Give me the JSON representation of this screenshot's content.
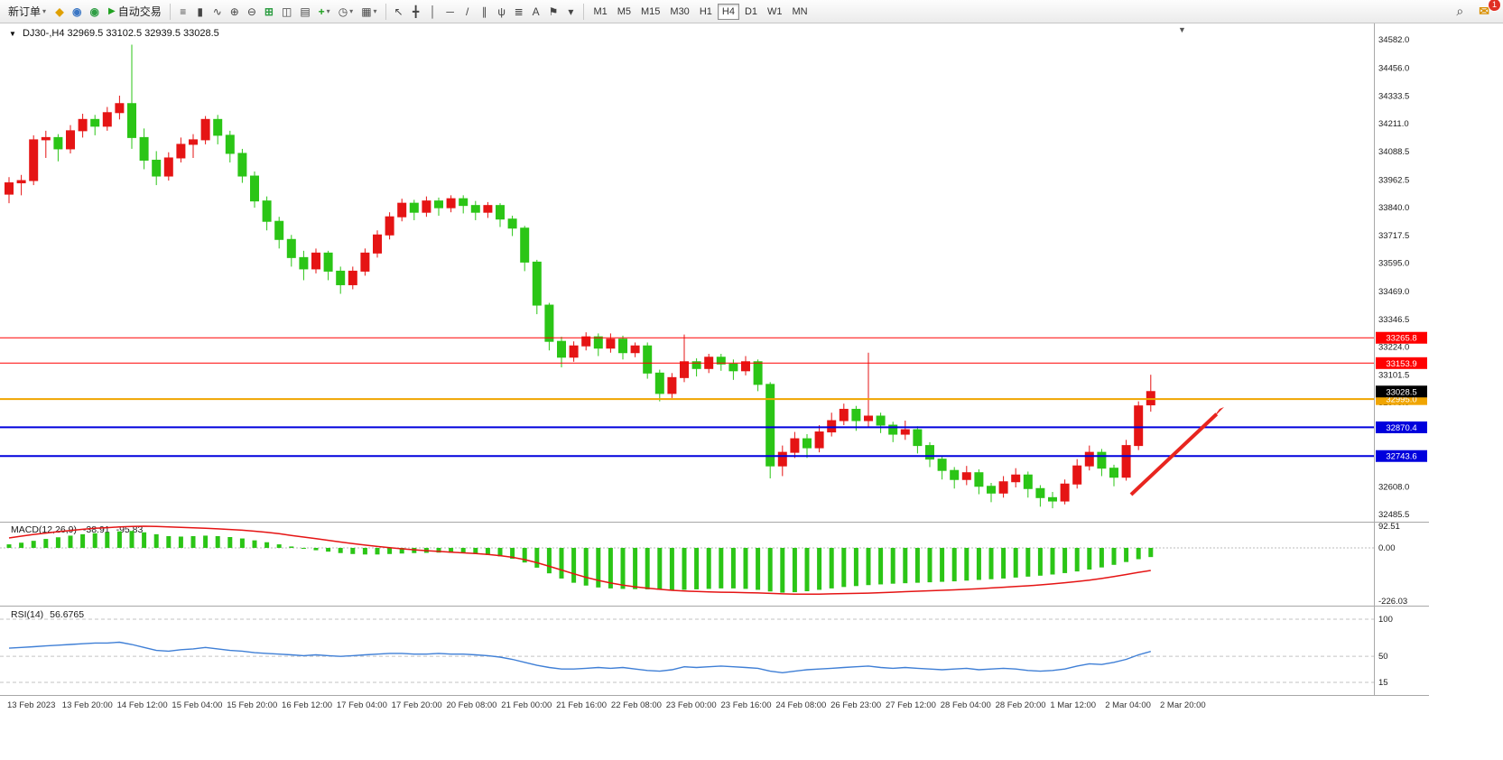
{
  "toolbar": {
    "new_order_label": "新订单",
    "auto_trading_label": "自动交易",
    "left_icons": [
      {
        "name": "market-icon",
        "glyph": "◆",
        "color": "#dfa000"
      },
      {
        "name": "community-icon",
        "glyph": "◉",
        "color": "#3a76c4"
      },
      {
        "name": "help-icon",
        "glyph": "◉",
        "color": "#2f9e44"
      }
    ],
    "chart_tools": [
      {
        "name": "bars-chart-icon",
        "glyph": "≡"
      },
      {
        "name": "candlestick-chart-icon",
        "glyph": "▮"
      },
      {
        "name": "line-chart-icon",
        "glyph": "∿"
      },
      {
        "name": "zoom-in-icon",
        "glyph": "⊕"
      },
      {
        "name": "zoom-out-icon",
        "glyph": "⊖"
      },
      {
        "name": "tile-windows-icon",
        "glyph": "⊞",
        "color": "#2f9e44"
      },
      {
        "name": "navigator-icon",
        "glyph": "◫"
      },
      {
        "name": "data-window-icon",
        "glyph": "▤"
      },
      {
        "name": "add-indicator-icon",
        "glyph": "+",
        "color": "#1fa11f",
        "caret": true
      },
      {
        "name": "period-clock-icon",
        "glyph": "◷",
        "caret": true
      },
      {
        "name": "template-icon",
        "glyph": "▦",
        "caret": true
      }
    ],
    "draw_tools": [
      {
        "name": "cursor-icon",
        "glyph": "↖"
      },
      {
        "name": "crosshair-icon",
        "glyph": "╋"
      },
      {
        "name": "vertical-line-icon",
        "glyph": "│"
      },
      {
        "name": "horizontal-line-icon",
        "glyph": "─"
      },
      {
        "name": "trendline-icon",
        "glyph": "/"
      },
      {
        "name": "channel-icon",
        "glyph": "∥"
      },
      {
        "name": "pitchfork-icon",
        "glyph": "ψ"
      },
      {
        "name": "fibonacci-icon",
        "glyph": "≣"
      },
      {
        "name": "text-icon",
        "glyph": "A"
      },
      {
        "name": "label-icon",
        "glyph": "⚑"
      },
      {
        "name": "shapes-icon",
        "glyph": "▾"
      }
    ],
    "timeframes": [
      "M1",
      "M5",
      "M15",
      "M30",
      "H1",
      "H4",
      "D1",
      "W1",
      "MN"
    ],
    "active_timeframe": "H4",
    "right_icons": [
      {
        "name": "search-icon",
        "glyph": "⌕"
      },
      {
        "name": "chat-icon",
        "glyph": "✉",
        "color": "#d98f00"
      }
    ],
    "notification_badge": "1"
  },
  "chart_data": {
    "type": "candlestick",
    "title": {
      "collapse_marker": "▼",
      "symbol": "DJ30-,H4",
      "open": "32969.5",
      "high": "33102.5",
      "low": "32939.5",
      "close": "33028.5"
    },
    "bull_color": "#e51414",
    "bear_color": "#2bc516",
    "price_axis_labels": [
      "34582.0",
      "34456.0",
      "34333.5",
      "34211.0",
      "34088.5",
      "33962.5",
      "33840.0",
      "33717.5",
      "33595.0",
      "33469.0",
      "33346.5",
      "33224.0",
      "33101.5",
      "32979.0",
      "32856.5",
      "32731.0",
      "32608.0",
      "32485.5"
    ],
    "price_axis_range": {
      "top_value": 34582.0,
      "bottom_value": 32485.5
    },
    "current_price": 33028.5,
    "current_price_label": "33028.5",
    "hlines": [
      {
        "value": 33265.8,
        "label": "33265.8",
        "color": "#ff0000",
        "width": 1
      },
      {
        "value": 33153.9,
        "label": "33153.9",
        "color": "#ff0000",
        "width": 1
      },
      {
        "value": 32995.0,
        "label": "32995.0",
        "color": "#f0a500",
        "width": 2
      },
      {
        "value": 32870.4,
        "label": "32870.4",
        "color": "#0000dd",
        "width": 2
      },
      {
        "value": 32743.6,
        "label": "32743.6",
        "color": "#0000dd",
        "width": 2
      }
    ],
    "time_labels": [
      "13 Feb 2023",
      "13 Feb 20:00",
      "14 Feb 12:00",
      "15 Feb 04:00",
      "15 Feb 20:00",
      "16 Feb 12:00",
      "17 Feb 04:00",
      "17 Feb 20:00",
      "20 Feb 08:00",
      "21 Feb 00:00",
      "21 Feb 16:00",
      "22 Feb 08:00",
      "23 Feb 00:00",
      "23 Feb 16:00",
      "24 Feb 08:00",
      "26 Feb 23:00",
      "27 Feb 12:00",
      "28 Feb 04:00",
      "28 Feb 20:00",
      "1 Mar 12:00",
      "2 Mar 04:00",
      "2 Mar 20:00"
    ],
    "candles": [
      [
        33900,
        33975,
        33860,
        33950
      ],
      [
        33950,
        33985,
        33895,
        33960
      ],
      [
        33960,
        34160,
        33940,
        34140
      ],
      [
        34140,
        34180,
        34060,
        34150
      ],
      [
        34150,
        34165,
        34045,
        34100
      ],
      [
        34100,
        34205,
        34080,
        34180
      ],
      [
        34180,
        34255,
        34150,
        34230
      ],
      [
        34230,
        34250,
        34160,
        34200
      ],
      [
        34200,
        34285,
        34180,
        34260
      ],
      [
        34260,
        34335,
        34230,
        34300
      ],
      [
        34300,
        34560,
        34100,
        34150
      ],
      [
        34150,
        34190,
        34010,
        34050
      ],
      [
        34050,
        34090,
        33940,
        33980
      ],
      [
        33980,
        34085,
        33960,
        34060
      ],
      [
        34060,
        34150,
        34040,
        34120
      ],
      [
        34120,
        34165,
        34060,
        34140
      ],
      [
        34140,
        34245,
        34120,
        34230
      ],
      [
        34230,
        34250,
        34120,
        34160
      ],
      [
        34160,
        34180,
        34040,
        34080
      ],
      [
        34080,
        34100,
        33950,
        33980
      ],
      [
        33980,
        34000,
        33840,
        33870
      ],
      [
        33870,
        33890,
        33740,
        33780
      ],
      [
        33780,
        33800,
        33660,
        33700
      ],
      [
        33700,
        33720,
        33580,
        33620
      ],
      [
        33620,
        33650,
        33520,
        33570
      ],
      [
        33570,
        33660,
        33550,
        33640
      ],
      [
        33640,
        33650,
        33520,
        33560
      ],
      [
        33560,
        33580,
        33460,
        33500
      ],
      [
        33500,
        33580,
        33480,
        33560
      ],
      [
        33560,
        33660,
        33540,
        33640
      ],
      [
        33640,
        33740,
        33620,
        33720
      ],
      [
        33720,
        33820,
        33700,
        33800
      ],
      [
        33800,
        33880,
        33780,
        33860
      ],
      [
        33860,
        33875,
        33785,
        33820
      ],
      [
        33820,
        33890,
        33800,
        33870
      ],
      [
        33870,
        33885,
        33805,
        33840
      ],
      [
        33840,
        33895,
        33820,
        33880
      ],
      [
        33880,
        33895,
        33815,
        33850
      ],
      [
        33850,
        33870,
        33785,
        33820
      ],
      [
        33820,
        33865,
        33795,
        33850
      ],
      [
        33850,
        33860,
        33755,
        33790
      ],
      [
        33790,
        33805,
        33715,
        33750
      ],
      [
        33750,
        33760,
        33560,
        33600
      ],
      [
        33600,
        33610,
        33370,
        33410
      ],
      [
        33410,
        33420,
        33210,
        33250
      ],
      [
        33250,
        33270,
        33135,
        33180
      ],
      [
        33180,
        33250,
        33160,
        33230
      ],
      [
        33230,
        33290,
        33210,
        33270
      ],
      [
        33270,
        33285,
        33185,
        33220
      ],
      [
        33220,
        33285,
        33200,
        33260
      ],
      [
        33260,
        33275,
        33170,
        33200
      ],
      [
        33200,
        33245,
        33180,
        33230
      ],
      [
        33230,
        33245,
        33085,
        33110
      ],
      [
        33110,
        33125,
        32985,
        33020
      ],
      [
        33020,
        33110,
        33000,
        33090
      ],
      [
        33090,
        33280,
        33070,
        33160
      ],
      [
        33160,
        33175,
        33095,
        33130
      ],
      [
        33130,
        33195,
        33110,
        33180
      ],
      [
        33180,
        33195,
        33120,
        33150
      ],
      [
        33150,
        33170,
        33080,
        33120
      ],
      [
        33120,
        33185,
        33100,
        33160
      ],
      [
        33160,
        33170,
        33030,
        33060
      ],
      [
        33060,
        33070,
        32645,
        32700
      ],
      [
        32700,
        32790,
        32655,
        32760
      ],
      [
        32760,
        32850,
        32735,
        32820
      ],
      [
        32820,
        32840,
        32735,
        32780
      ],
      [
        32780,
        32880,
        32760,
        32850
      ],
      [
        32850,
        32935,
        32830,
        32900
      ],
      [
        32900,
        32975,
        32880,
        32950
      ],
      [
        32950,
        32965,
        32855,
        32900
      ],
      [
        32900,
        33200,
        32870,
        32920
      ],
      [
        32920,
        32935,
        32845,
        32880
      ],
      [
        32880,
        32895,
        32805,
        32840
      ],
      [
        32840,
        32900,
        32815,
        32860
      ],
      [
        32860,
        32875,
        32755,
        32790
      ],
      [
        32790,
        32805,
        32695,
        32730
      ],
      [
        32730,
        32745,
        32640,
        32680
      ],
      [
        32680,
        32695,
        32600,
        32640
      ],
      [
        32640,
        32700,
        32615,
        32670
      ],
      [
        32670,
        32685,
        32575,
        32610
      ],
      [
        32610,
        32625,
        32540,
        32580
      ],
      [
        32580,
        32655,
        32560,
        32630
      ],
      [
        32630,
        32690,
        32605,
        32660
      ],
      [
        32660,
        32675,
        32560,
        32600
      ],
      [
        32600,
        32615,
        32520,
        32560
      ],
      [
        32560,
        32585,
        32513,
        32545
      ],
      [
        32545,
        32640,
        32530,
        32620
      ],
      [
        32620,
        32730,
        32600,
        32700
      ],
      [
        32700,
        32790,
        32680,
        32760
      ],
      [
        32760,
        32775,
        32655,
        32690
      ],
      [
        32690,
        32705,
        32610,
        32650
      ],
      [
        32650,
        32815,
        32635,
        32790
      ],
      [
        32790,
        32985,
        32770,
        32965
      ],
      [
        32969.5,
        33102.5,
        32939.5,
        33028.5
      ]
    ],
    "macd": {
      "label": "MACD(12,26,9)",
      "value_label": "-38.91",
      "signal_label": "-95.83",
      "bar_color": "#2bc516",
      "signal_color": "#e51414",
      "scale": [
        {
          "label": "92.51",
          "value": 92.51
        },
        {
          "label": "0.00",
          "value": 0
        },
        {
          "label": "-226.03",
          "value": -226.03
        }
      ],
      "histogram": [
        15,
        22,
        30,
        38,
        45,
        52,
        58,
        62,
        66,
        70,
        72,
        66,
        58,
        50,
        48,
        50,
        52,
        50,
        46,
        40,
        32,
        24,
        15,
        6,
        -3,
        -10,
        -16,
        -22,
        -26,
        -28,
        -28,
        -26,
        -24,
        -22,
        -21,
        -20,
        -21,
        -23,
        -26,
        -30,
        -36,
        -46,
        -62,
        -84,
        -108,
        -130,
        -148,
        -160,
        -168,
        -172,
        -174,
        -175,
        -176,
        -178,
        -179,
        -178,
        -176,
        -174,
        -172,
        -172,
        -174,
        -178,
        -185,
        -190,
        -188,
        -184,
        -178,
        -172,
        -166,
        -162,
        -158,
        -155,
        -152,
        -150,
        -148,
        -146,
        -144,
        -142,
        -139,
        -136,
        -133,
        -130,
        -126,
        -122,
        -118,
        -113,
        -107,
        -100,
        -92,
        -83,
        -72,
        -60,
        -48,
        -38.91
      ],
      "signal": [
        42,
        50,
        57,
        63,
        69,
        74,
        79,
        83,
        86,
        89,
        91,
        92,
        91,
        89,
        87,
        85,
        83,
        81,
        78,
        75,
        71,
        66,
        60,
        53,
        46,
        39,
        32,
        25,
        18,
        12,
        6,
        1,
        -4,
        -8,
        -12,
        -15,
        -18,
        -21,
        -24,
        -28,
        -33,
        -40,
        -50,
        -63,
        -78,
        -94,
        -110,
        -125,
        -138,
        -149,
        -158,
        -165,
        -171,
        -176,
        -180,
        -183,
        -185,
        -187,
        -188,
        -189,
        -190,
        -191,
        -193,
        -195,
        -196,
        -196,
        -196,
        -195,
        -194,
        -193,
        -192,
        -190,
        -188,
        -186,
        -184,
        -182,
        -180,
        -178,
        -176,
        -173,
        -170,
        -167,
        -164,
        -161,
        -157,
        -153,
        -148,
        -143,
        -137,
        -130,
        -122,
        -113,
        -104,
        -95.83
      ]
    },
    "rsi": {
      "label": "RSI(14)",
      "value_label": "56.6765",
      "line_color": "#3f7fd6",
      "scale": [
        {
          "label": "100",
          "value": 100
        },
        {
          "label": "50",
          "value": 50
        },
        {
          "label": "15",
          "value": 15
        }
      ],
      "values": [
        61,
        62,
        63,
        64,
        65,
        66,
        67,
        68,
        68,
        69,
        66,
        62,
        58,
        57,
        59,
        60,
        62,
        60,
        58,
        57,
        55,
        54,
        53,
        52,
        51,
        52,
        51,
        50,
        51,
        52,
        53,
        54,
        54,
        53,
        53,
        54,
        53,
        53,
        52,
        51,
        49,
        46,
        42,
        38,
        35,
        33,
        33,
        34,
        35,
        34,
        35,
        33,
        31,
        30,
        32,
        36,
        35,
        36,
        37,
        36,
        35,
        34,
        30,
        28,
        30,
        32,
        33,
        34,
        35,
        36,
        37,
        35,
        34,
        35,
        34,
        33,
        32,
        33,
        34,
        32,
        33,
        34,
        33,
        31,
        30,
        31,
        33,
        37,
        40,
        39,
        42,
        46,
        52,
        56.68
      ]
    },
    "annotation_arrow": {
      "color": "#e8251f",
      "from": [
        1253,
        548
      ],
      "to": [
        1356,
        451
      ]
    },
    "shift_marker": "▼"
  }
}
